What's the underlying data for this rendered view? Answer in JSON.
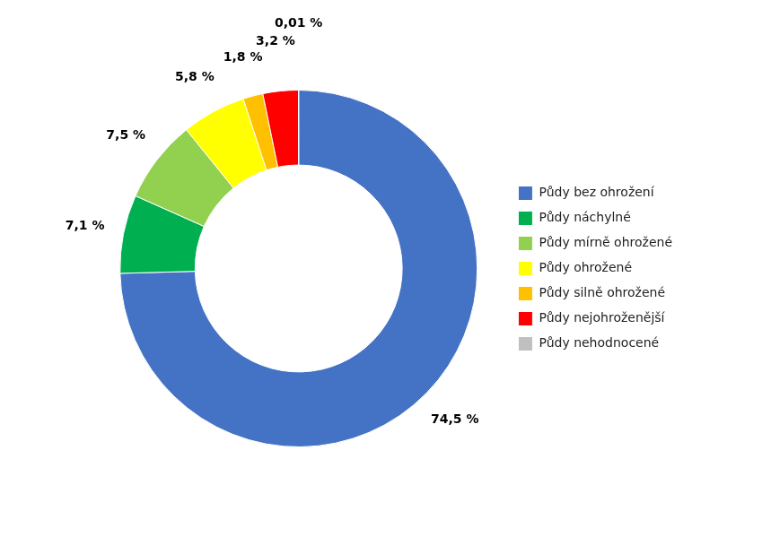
{
  "chart_data": {
    "type": "doughnut",
    "categories": [
      "Půdy bez ohrožení",
      "Půdy náchylné",
      "Půdy mírně ohrožené",
      "Půdy ohrožené",
      "Půdy silně ohrožené",
      "Půdy nejohroženější",
      "Půdy nehodnocené"
    ],
    "values": [
      74.5,
      7.1,
      7.5,
      5.8,
      1.8,
      3.2,
      0.01
    ],
    "value_labels": [
      "74,5 %",
      "7,1 %",
      "7,5 %",
      "5,8 %",
      "1,8 %",
      "3,2 %",
      "0,01 %"
    ],
    "colors": [
      "#4472C4",
      "#00B050",
      "#92D050",
      "#FFFF00",
      "#FFC000",
      "#FF0000",
      "#C0C0C0"
    ],
    "data_labels": true,
    "legend": "right"
  }
}
